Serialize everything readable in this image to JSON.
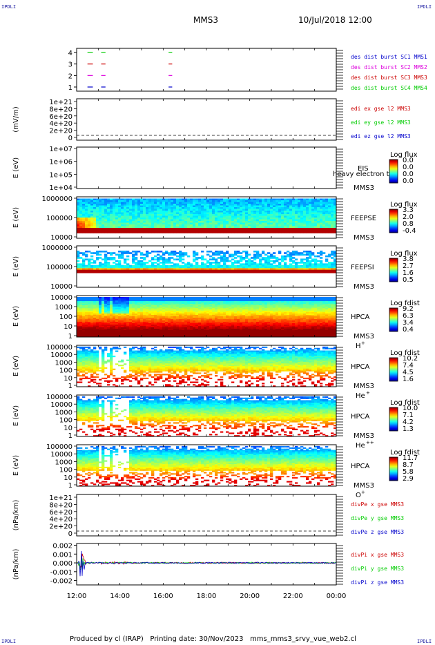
{
  "header": {
    "corner_tl": "IPDLI",
    "corner_tr": "IPDLI",
    "corner_bl": "IPDLI",
    "corner_br": "IPDLI",
    "mission": "MMS3",
    "datetime": "10/Jul/2018 12:00"
  },
  "footer": {
    "produced_by": "Produced by cl (IRAP)",
    "printing_date": "Printing date: 30/Nov/2023",
    "script_name": "mms_mms3_srvy_vue_web2.cl"
  },
  "x_axis": {
    "ticks": [
      "12:00",
      "14:00",
      "16:00",
      "18:00",
      "20:00",
      "22:00",
      "00:00"
    ]
  },
  "colors": {
    "red": "#ff0000",
    "magenta": "#dd00dd",
    "blue": "#0000cc",
    "green": "#00cc00",
    "dark_red": "#cc0000"
  },
  "chart_data": [
    {
      "id": "burst",
      "type": "scatter",
      "y_ticks": [
        "4",
        "3",
        "2",
        "1"
      ],
      "legend": [
        {
          "label": "des dist burst SC1 MMS1",
          "color": "#0000cc"
        },
        {
          "label": "des dist burst SC2 MMS2",
          "color": "#dd00dd"
        },
        {
          "label": "des dist burst SC3 MMS3",
          "color": "#cc0000"
        },
        {
          "label": "des dist burst SC4 MMS4",
          "color": "#00cc00"
        }
      ],
      "segments": [
        {
          "sc": 4,
          "x": [
            "12:30",
            "12:45"
          ]
        },
        {
          "sc": 4,
          "x": [
            "13:08",
            "13:20"
          ]
        },
        {
          "sc": 4,
          "x": [
            "16:15",
            "16:25"
          ]
        },
        {
          "sc": 3,
          "x": [
            "12:30",
            "12:45"
          ]
        },
        {
          "sc": 3,
          "x": [
            "13:08",
            "13:20"
          ]
        },
        {
          "sc": 3,
          "x": [
            "16:15",
            "16:25"
          ]
        },
        {
          "sc": 2,
          "x": [
            "12:30",
            "12:45"
          ]
        },
        {
          "sc": 2,
          "x": [
            "13:08",
            "13:20"
          ]
        },
        {
          "sc": 2,
          "x": [
            "16:15",
            "16:25"
          ]
        },
        {
          "sc": 1,
          "x": [
            "12:30",
            "12:45"
          ]
        },
        {
          "sc": 1,
          "x": [
            "13:08",
            "13:20"
          ]
        },
        {
          "sc": 1,
          "x": [
            "16:15",
            "16:25"
          ]
        }
      ]
    },
    {
      "id": "edi",
      "type": "line",
      "ylabel": "(mV/m)",
      "y_ticks": [
        "1e+21",
        "8e+20",
        "6e+20",
        "4e+20",
        "2e+20",
        "0"
      ],
      "legend": [
        {
          "label": "edi ex gse l2 MMS3",
          "color": "#cc0000"
        },
        {
          "label": "edi ey gse l2 MMS3",
          "color": "#00cc00"
        },
        {
          "label": "edi ez gse l2 MMS3",
          "color": "#0000cc"
        }
      ]
    },
    {
      "id": "eis",
      "type": "heatmap",
      "ylabel": "E (eV)",
      "y_ticks": [
        "1e+07",
        "1e+06",
        "1e+05",
        "1e+04"
      ],
      "instrument": "EIS",
      "extra_label": "heavy electron to",
      "mission": "MMS3",
      "cbar_title": "Log flux",
      "cbar_ticks": [
        "0.0",
        "0.0",
        "0.0",
        "0.0"
      ]
    },
    {
      "id": "feepse",
      "type": "heatmap",
      "ylabel": "E (eV)",
      "y_ticks": [
        "1000000",
        "100000",
        "10000"
      ],
      "instrument": "FEEPSE",
      "mission": "MMS3",
      "cbar_title": "Log flux",
      "cbar_ticks": [
        "3.3",
        "2.0",
        "0.8",
        "-0.4"
      ]
    },
    {
      "id": "feepsi",
      "type": "heatmap",
      "ylabel": "E (eV)",
      "y_ticks": [
        "1000000",
        "100000",
        "10000"
      ],
      "instrument": "FEEPSI",
      "mission": "MMS3",
      "cbar_title": "Log flux",
      "cbar_ticks": [
        "3.8",
        "2.7",
        "1.6",
        "0.5"
      ]
    },
    {
      "id": "hpca_h",
      "type": "heatmap",
      "ylabel": "E (eV)",
      "y_ticks": [
        "10000",
        "1000",
        "100",
        "10",
        "1"
      ],
      "instrument": "HPCA",
      "mission": "MMS3",
      "species": "H",
      "species_sup": "+",
      "cbar_title": "Log fdist",
      "cbar_ticks": [
        "9.2",
        "6.3",
        "3.4",
        "0.4"
      ]
    },
    {
      "id": "hpca_he",
      "type": "heatmap",
      "ylabel": "E (eV)",
      "y_ticks": [
        "100000",
        "10000",
        "1000",
        "100",
        "10",
        "1"
      ],
      "instrument": "HPCA",
      "mission": "MMS3",
      "species": "He",
      "species_sup": "+",
      "cbar_title": "Log fdist",
      "cbar_ticks": [
        "10.2",
        "7.4",
        "4.5",
        "1.6"
      ]
    },
    {
      "id": "hpca_hepp",
      "type": "heatmap",
      "ylabel": "E (eV)",
      "y_ticks": [
        "100000",
        "10000",
        "1000",
        "100",
        "10",
        "1"
      ],
      "instrument": "HPCA",
      "mission": "MMS3",
      "species": "He",
      "species_sup": "++",
      "cbar_title": "Log fdist",
      "cbar_ticks": [
        "10.0",
        "7.1",
        "4.2",
        "1.3"
      ]
    },
    {
      "id": "hpca_o",
      "type": "heatmap",
      "ylabel": "E (eV)",
      "y_ticks": [
        "100000",
        "10000",
        "1000",
        "100",
        "10",
        "1"
      ],
      "instrument": "HPCA",
      "mission": "MMS3",
      "species": "O",
      "species_sup": "+",
      "cbar_title": "Log fdist",
      "cbar_ticks": [
        "11.7",
        "8.7",
        "5.8",
        "2.9"
      ]
    },
    {
      "id": "divpe",
      "type": "line",
      "ylabel": "(nPa/km)",
      "y_ticks": [
        "1e+21",
        "8e+20",
        "6e+20",
        "4e+20",
        "2e+20",
        "0"
      ],
      "legend": [
        {
          "label": "divPe x gse MMS3",
          "color": "#cc0000"
        },
        {
          "label": "divPe y gse MMS3",
          "color": "#00cc00"
        },
        {
          "label": "divPe z gse MMS3",
          "color": "#0000cc"
        }
      ]
    },
    {
      "id": "divpi",
      "type": "line",
      "ylabel": "(nPa/km)",
      "y_ticks": [
        "0.002",
        "0.001",
        "0.000",
        "-0.001",
        "-0.002"
      ],
      "ylim": [
        -0.0025,
        0.0022
      ],
      "legend": [
        {
          "label": "divPi x gse MMS3",
          "color": "#cc0000"
        },
        {
          "label": "divPi y gse MMS3",
          "color": "#00cc00"
        },
        {
          "label": "divPi z gse MMS3",
          "color": "#0000cc"
        }
      ]
    }
  ]
}
